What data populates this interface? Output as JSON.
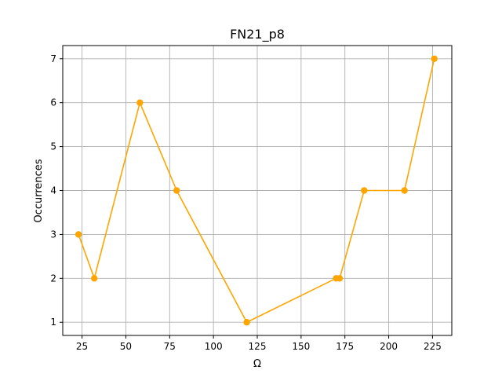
{
  "chart_data": {
    "type": "line",
    "title": "FN21_p8",
    "xlabel": "Ω",
    "ylabel": "Occurrences",
    "xlim": [
      14,
      236
    ],
    "ylim": [
      0.7,
      7.3
    ],
    "xticks": [
      25,
      50,
      75,
      100,
      125,
      150,
      175,
      200,
      225
    ],
    "yticks": [
      1,
      2,
      3,
      4,
      5,
      6,
      7
    ],
    "grid": true,
    "series": [
      {
        "color": "#ffa500",
        "marker": "circle",
        "x": [
          23,
          32,
          58,
          79,
          119,
          170,
          172,
          186,
          209,
          226
        ],
        "y": [
          3,
          2,
          6,
          4,
          1,
          2,
          2,
          4,
          4,
          7
        ]
      }
    ]
  }
}
